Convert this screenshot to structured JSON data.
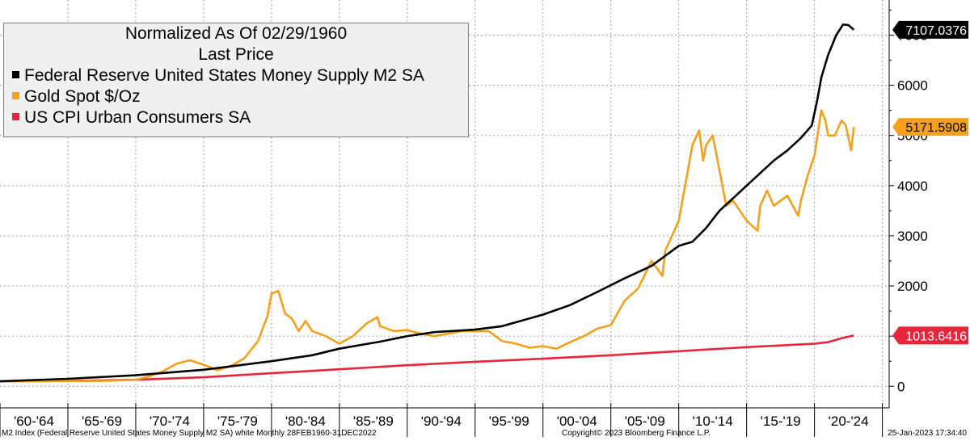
{
  "legend": {
    "title_line1": "Normalized As Of 02/29/1960",
    "title_line2": "Last Price",
    "items": [
      {
        "label": "Federal Reserve United States Money Supply M2 SA",
        "color": "#000000"
      },
      {
        "label": "Gold Spot $/Oz",
        "color": "#f5a01a"
      },
      {
        "label": "US CPI Urban Consumers SA",
        "color": "#e8253a"
      }
    ]
  },
  "footer": {
    "left": "M2 Index (Federal Reserve United States Money Supply M2 SA) white  Monthly 28FEB1960-31DEC2022",
    "center": "Copyright© 2023 Bloomberg Finance L.P.",
    "right": "25-Jan-2023 17:34:40"
  },
  "chart_data": {
    "type": "line",
    "x_range": [
      1960,
      2025.5
    ],
    "ylim": [
      -430,
      7700
    ],
    "y_ticks": [
      0,
      1000,
      2000,
      3000,
      4000,
      5000,
      6000,
      7000
    ],
    "x_categories": [
      "'60-'64",
      "'65-'69",
      "'70-'74",
      "'75-'79",
      "'80-'84",
      "'85-'89",
      "'90-'94",
      "'95-'99",
      "'00-'04",
      "'05-'09",
      "'10-'14",
      "'15-'19",
      "'20-'24"
    ],
    "grid": true,
    "series": [
      {
        "name": "Federal Reserve United States Money Supply M2 SA",
        "color": "#000000",
        "last_label": "7107.0376",
        "points": [
          [
            1960,
            100
          ],
          [
            1965,
            150
          ],
          [
            1970,
            220
          ],
          [
            1975,
            330
          ],
          [
            1980,
            500
          ],
          [
            1983,
            620
          ],
          [
            1985,
            750
          ],
          [
            1988,
            890
          ],
          [
            1990,
            1000
          ],
          [
            1992,
            1080
          ],
          [
            1995,
            1130
          ],
          [
            1997,
            1200
          ],
          [
            2000,
            1430
          ],
          [
            2002,
            1620
          ],
          [
            2004,
            1880
          ],
          [
            2006,
            2150
          ],
          [
            2008,
            2400
          ],
          [
            2009,
            2600
          ],
          [
            2010,
            2800
          ],
          [
            2011,
            2880
          ],
          [
            2012,
            3150
          ],
          [
            2013,
            3500
          ],
          [
            2014,
            3750
          ],
          [
            2015,
            4000
          ],
          [
            2016,
            4250
          ],
          [
            2017,
            4500
          ],
          [
            2018,
            4700
          ],
          [
            2019,
            4950
          ],
          [
            2019.8,
            5200
          ],
          [
            2020.2,
            5700
          ],
          [
            2020.5,
            6150
          ],
          [
            2021,
            6600
          ],
          [
            2021.6,
            7000
          ],
          [
            2022.1,
            7210
          ],
          [
            2022.5,
            7200
          ],
          [
            2022.9,
            7107
          ]
        ]
      },
      {
        "name": "Gold Spot $/Oz",
        "color": "#f5a01a",
        "last_label": "5171.5908",
        "points": [
          [
            1960,
            100
          ],
          [
            1968,
            110
          ],
          [
            1970,
            130
          ],
          [
            1971,
            200
          ],
          [
            1972,
            300
          ],
          [
            1973,
            450
          ],
          [
            1974,
            520
          ],
          [
            1975,
            430
          ],
          [
            1976,
            320
          ],
          [
            1977,
            400
          ],
          [
            1978,
            560
          ],
          [
            1979,
            900
          ],
          [
            1979.7,
            1400
          ],
          [
            1980,
            1850
          ],
          [
            1980.5,
            1900
          ],
          [
            1981,
            1450
          ],
          [
            1981.5,
            1350
          ],
          [
            1982,
            1100
          ],
          [
            1982.5,
            1300
          ],
          [
            1983,
            1100
          ],
          [
            1984,
            1000
          ],
          [
            1985,
            850
          ],
          [
            1986,
            1000
          ],
          [
            1987,
            1250
          ],
          [
            1987.8,
            1380
          ],
          [
            1988,
            1200
          ],
          [
            1989,
            1100
          ],
          [
            1990,
            1120
          ],
          [
            1991,
            1050
          ],
          [
            1992,
            1000
          ],
          [
            1993,
            1050
          ],
          [
            1994,
            1100
          ],
          [
            1995,
            1100
          ],
          [
            1996,
            1100
          ],
          [
            1997,
            900
          ],
          [
            1998,
            850
          ],
          [
            1999,
            770
          ],
          [
            2000,
            800
          ],
          [
            2001,
            750
          ],
          [
            2002,
            880
          ],
          [
            2003,
            1000
          ],
          [
            2004,
            1150
          ],
          [
            2005,
            1220
          ],
          [
            2006,
            1700
          ],
          [
            2007,
            1950
          ],
          [
            2008,
            2500
          ],
          [
            2008.8,
            2200
          ],
          [
            2009,
            2700
          ],
          [
            2010,
            3300
          ],
          [
            2011,
            4800
          ],
          [
            2011.5,
            5100
          ],
          [
            2011.8,
            4500
          ],
          [
            2012,
            4800
          ],
          [
            2012.5,
            5000
          ],
          [
            2013,
            4300
          ],
          [
            2013.5,
            3600
          ],
          [
            2014,
            3700
          ],
          [
            2015,
            3300
          ],
          [
            2015.8,
            3100
          ],
          [
            2016,
            3600
          ],
          [
            2016.5,
            3900
          ],
          [
            2017,
            3600
          ],
          [
            2018,
            3800
          ],
          [
            2018.8,
            3400
          ],
          [
            2019,
            3700
          ],
          [
            2019.5,
            4200
          ],
          [
            2020,
            4600
          ],
          [
            2020.5,
            5500
          ],
          [
            2020.8,
            5300
          ],
          [
            2021,
            5000
          ],
          [
            2021.5,
            5000
          ],
          [
            2022,
            5300
          ],
          [
            2022.3,
            5200
          ],
          [
            2022.7,
            4700
          ],
          [
            2022.9,
            5171
          ]
        ]
      },
      {
        "name": "US CPI Urban Consumers SA",
        "color": "#e8253a",
        "last_label": "1013.6416",
        "points": [
          [
            1960,
            100
          ],
          [
            1965,
            107
          ],
          [
            1970,
            130
          ],
          [
            1975,
            180
          ],
          [
            1980,
            260
          ],
          [
            1985,
            340
          ],
          [
            1990,
            420
          ],
          [
            1995,
            490
          ],
          [
            2000,
            550
          ],
          [
            2005,
            620
          ],
          [
            2010,
            700
          ],
          [
            2015,
            780
          ],
          [
            2020,
            850
          ],
          [
            2021,
            880
          ],
          [
            2022,
            960
          ],
          [
            2022.9,
            1013
          ]
        ]
      }
    ]
  }
}
